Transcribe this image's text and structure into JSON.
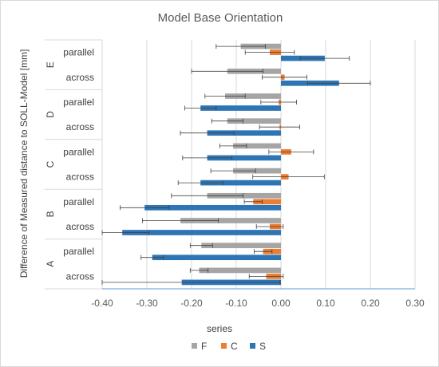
{
  "chart_data": {
    "type": "bar",
    "orientation": "horizontal",
    "title": "Model Base Orientation",
    "ylabel": "Difference of Measured distance to SOLL-Model [mm]",
    "xlabel": "",
    "xlim": [
      -0.4,
      0.3
    ],
    "xticks": [
      "-0.40",
      "-0.30",
      "-0.20",
      "-0.10",
      "0.00",
      "0.10",
      "0.20",
      "0.30"
    ],
    "legend": {
      "title": "series",
      "position": "bottom"
    },
    "colors": {
      "F": "#a5a5a5",
      "C": "#ed7d31",
      "S": "#2e75b6"
    },
    "groups": [
      "E",
      "D",
      "C",
      "B",
      "A"
    ],
    "subcategories": [
      "parallel",
      "across"
    ],
    "rows": [
      {
        "group": "E",
        "sub": "parallel",
        "F": -0.09,
        "F_err": 0.055,
        "C": -0.025,
        "C_err": 0.055,
        "S": 0.098,
        "S_err": 0.055
      },
      {
        "group": "E",
        "sub": "across",
        "F": -0.12,
        "F_err": 0.08,
        "C": 0.008,
        "C_err": 0.05,
        "S": 0.13,
        "S_err": 0.07
      },
      {
        "group": "D",
        "sub": "parallel",
        "F": -0.125,
        "F_err": 0.045,
        "C": -0.005,
        "C_err": 0.04,
        "S": -0.18,
        "S_err": 0.035
      },
      {
        "group": "D",
        "sub": "across",
        "F": -0.12,
        "F_err": 0.035,
        "C": -0.003,
        "C_err": 0.045,
        "S": -0.165,
        "S_err": 0.06
      },
      {
        "group": "C",
        "sub": "parallel",
        "F": -0.107,
        "F_err": 0.03,
        "C": 0.023,
        "C_err": 0.05,
        "S": -0.165,
        "S_err": 0.055
      },
      {
        "group": "C",
        "sub": "across",
        "F": -0.107,
        "F_err": 0.05,
        "C": 0.017,
        "C_err": 0.08,
        "S": -0.18,
        "S_err": 0.05
      },
      {
        "group": "B",
        "sub": "parallel",
        "F": -0.165,
        "F_err": 0.08,
        "C": -0.062,
        "C_err": 0.02,
        "S": -0.305,
        "S_err": 0.055
      },
      {
        "group": "B",
        "sub": "across",
        "F": -0.225,
        "F_err": 0.085,
        "C": -0.025,
        "C_err": 0.03,
        "S": -0.355,
        "S_err": 0.06
      },
      {
        "group": "A",
        "sub": "parallel",
        "F": -0.178,
        "F_err": 0.025,
        "C": -0.04,
        "C_err": 0.02,
        "S": -0.288,
        "S_err": 0.025
      },
      {
        "group": "A",
        "sub": "across",
        "F": -0.183,
        "F_err": 0.02,
        "C": -0.033,
        "C_err": 0.038,
        "S": -0.222,
        "S_err": 0.22
      }
    ]
  }
}
